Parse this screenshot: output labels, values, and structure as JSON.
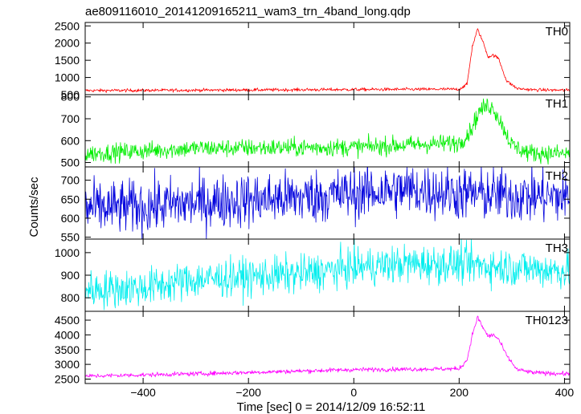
{
  "chart_data": {
    "type": "line",
    "title": "ae809116010_20141209165211_wam3_trn_4band_long.qdp",
    "xlabel": "Time [sec] 0 = 2014/12/09 16:52:11",
    "ylabel": "Counts/sec",
    "xlim": [
      -510,
      410
    ],
    "xticks": [
      -400,
      -200,
      0,
      200,
      400
    ],
    "x_step": 1,
    "panels": [
      {
        "name": "TH0",
        "color": "#ff0000",
        "ylim": [
          500,
          2600
        ],
        "yticks": [
          500,
          1000,
          1500,
          2000,
          2500
        ],
        "baseline": [
          [
            -510,
            620
          ],
          [
            -400,
            625
          ],
          [
            0,
            650
          ],
          [
            200,
            660
          ],
          [
            215,
            800
          ],
          [
            225,
            1900
          ],
          [
            235,
            2400
          ],
          [
            245,
            2050
          ],
          [
            255,
            1600
          ],
          [
            265,
            1650
          ],
          [
            275,
            1550
          ],
          [
            290,
            900
          ],
          [
            310,
            680
          ],
          [
            340,
            640
          ],
          [
            400,
            630
          ]
        ],
        "noise": 25
      },
      {
        "name": "TH1",
        "color": "#00ee00",
        "ylim": [
          480,
          810
        ],
        "yticks": [
          500,
          600,
          700,
          800
        ],
        "baseline": [
          [
            -510,
            540
          ],
          [
            -300,
            565
          ],
          [
            0,
            570
          ],
          [
            150,
            585
          ],
          [
            200,
            590
          ],
          [
            220,
            640
          ],
          [
            240,
            740
          ],
          [
            255,
            760
          ],
          [
            265,
            750
          ],
          [
            280,
            680
          ],
          [
            300,
            580
          ],
          [
            330,
            545
          ],
          [
            400,
            540
          ]
        ],
        "noise": 22
      },
      {
        "name": "TH2",
        "color": "#0000dd",
        "ylim": [
          545,
          735
        ],
        "yticks": [
          550,
          600,
          650,
          700
        ],
        "baseline": [
          [
            -510,
            625
          ],
          [
            -400,
            630
          ],
          [
            -300,
            640
          ],
          [
            -100,
            655
          ],
          [
            0,
            665
          ],
          [
            100,
            675
          ],
          [
            200,
            665
          ],
          [
            300,
            660
          ],
          [
            400,
            655
          ]
        ],
        "noise": 38
      },
      {
        "name": "TH3",
        "color": "#00eeee",
        "ylim": [
          740,
          1060
        ],
        "yticks": [
          800,
          900,
          1000
        ],
        "baseline": [
          [
            -510,
            835
          ],
          [
            -400,
            845
          ],
          [
            -300,
            880
          ],
          [
            -100,
            905
          ],
          [
            0,
            935
          ],
          [
            100,
            950
          ],
          [
            200,
            950
          ],
          [
            300,
            935
          ],
          [
            400,
            920
          ]
        ],
        "noise": 45
      },
      {
        "name": "TH0123",
        "color": "#ff00ff",
        "ylim": [
          2350,
          4800
        ],
        "yticks": [
          2500,
          3000,
          3500,
          4000,
          4500
        ],
        "baseline": [
          [
            -510,
            2600
          ],
          [
            -300,
            2680
          ],
          [
            0,
            2820
          ],
          [
            200,
            2850
          ],
          [
            215,
            3150
          ],
          [
            225,
            4000
          ],
          [
            235,
            4600
          ],
          [
            245,
            4250
          ],
          [
            255,
            3950
          ],
          [
            265,
            4000
          ],
          [
            275,
            3850
          ],
          [
            290,
            3300
          ],
          [
            310,
            2820
          ],
          [
            340,
            2720
          ],
          [
            400,
            2680
          ]
        ],
        "noise": 40
      }
    ]
  }
}
